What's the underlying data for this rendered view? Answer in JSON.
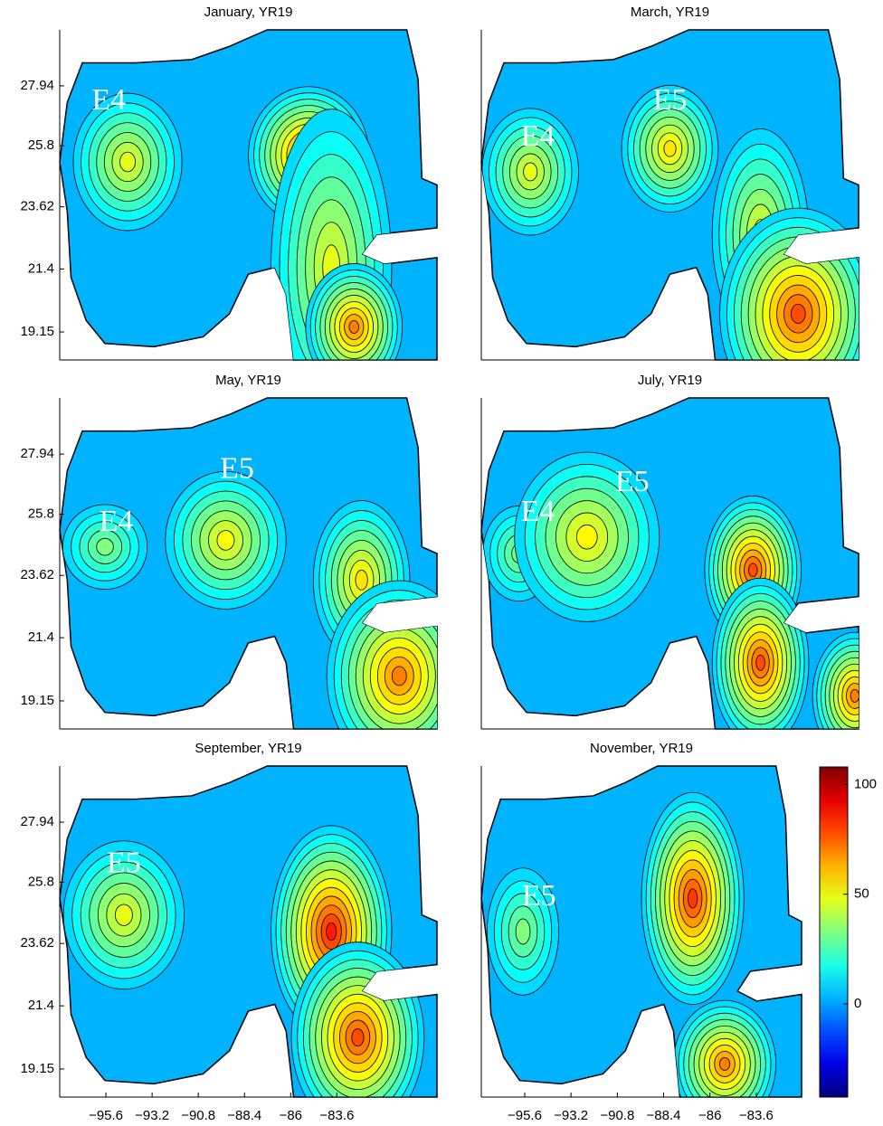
{
  "chart_data": [
    {
      "type": "contour",
      "title": "January, YR19",
      "xlim": [
        -98,
        -78.4
      ],
      "ylim": [
        18.15,
        29.94
      ],
      "yticks": [
        19.15,
        21.4,
        23.62,
        25.8,
        27.94
      ],
      "annotations": [
        "E4"
      ]
    },
    {
      "type": "contour",
      "title": "March, YR19",
      "xlim": [
        -98,
        -78.4
      ],
      "ylim": [
        18.15,
        29.94
      ],
      "annotations": [
        "E4",
        "E5"
      ]
    },
    {
      "type": "contour",
      "title": "May, YR19",
      "xlim": [
        -98,
        -78.4
      ],
      "ylim": [
        18.15,
        29.94
      ],
      "yticks": [
        19.15,
        21.4,
        23.62,
        25.8,
        27.94
      ],
      "annotations": [
        "E5",
        "E4"
      ]
    },
    {
      "type": "contour",
      "title": "July, YR19",
      "xlim": [
        -98,
        -78.4
      ],
      "ylim": [
        18.15,
        29.94
      ],
      "annotations": [
        "E4",
        "E5"
      ]
    },
    {
      "type": "contour",
      "title": "September, YR19",
      "xlim": [
        -98,
        -78.4
      ],
      "ylim": [
        18.15,
        29.94
      ],
      "yticks": [
        19.15,
        21.4,
        23.62,
        25.8,
        27.94
      ],
      "xticks": [
        {
          "value": -95.6,
          "label": "−95.6"
        },
        {
          "value": -93.2,
          "label": "−93.2"
        },
        {
          "value": -90.8,
          "label": "−90.8"
        },
        {
          "value": -88.4,
          "label": "−88.4"
        },
        {
          "value": -86,
          "label": "−86"
        },
        {
          "value": -83.6,
          "label": "−83.6"
        }
      ],
      "annotations": [
        "E5"
      ]
    },
    {
      "type": "contour",
      "title": "November, YR19",
      "xlim": [
        -97.85,
        -81.25
      ],
      "ylim": [
        18.15,
        29.94
      ],
      "xticks": [
        {
          "value": -95.6,
          "label": "−95.6"
        },
        {
          "value": -93.2,
          "label": "−93.2"
        },
        {
          "value": -90.8,
          "label": "−90.8"
        },
        {
          "value": -88.4,
          "label": "−88.4"
        },
        {
          "value": -86,
          "label": "−86"
        },
        {
          "value": -83.6,
          "label": "−83.6"
        }
      ],
      "annotations": [
        "E5"
      ]
    },
    {
      "type": "colorbar",
      "ylim": [
        -42.5,
        108
      ],
      "yticks": [
        0,
        50,
        100
      ]
    }
  ]
}
